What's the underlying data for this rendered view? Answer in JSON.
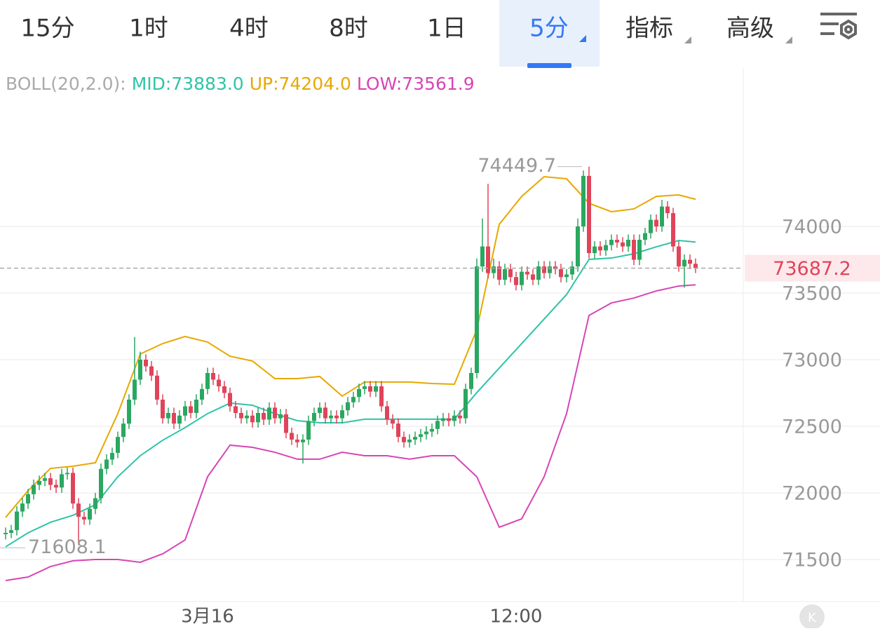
{
  "toolbar": {
    "tabs": [
      "15分",
      "1时",
      "4时",
      "8时",
      "1日",
      "5分",
      "指标",
      "高级"
    ]
  },
  "chart_data": {
    "type": "candlestick",
    "indicator": "BOLL(20,2.0):",
    "up_color": "#2aa760",
    "down_color": "#e0445a",
    "ylim": [
      71184,
      75174
    ],
    "yticks": [
      71500,
      72000,
      72500,
      73000,
      73500,
      74000
    ],
    "grid": true,
    "categories": [
      null,
      null,
      null,
      null,
      null,
      null,
      null,
      null,
      null,
      null,
      null,
      null,
      null,
      null,
      null,
      null,
      null,
      null,
      null,
      null,
      null,
      null,
      null,
      null,
      null,
      null,
      null,
      null,
      null,
      null,
      null,
      null,
      null,
      null,
      null,
      null,
      "3月16",
      null,
      null,
      null,
      null,
      null,
      null,
      null,
      null,
      null,
      null,
      null,
      null,
      null,
      null,
      null,
      null,
      null,
      null,
      null,
      null,
      null,
      null,
      null,
      null,
      null,
      null,
      null,
      null,
      null,
      null,
      null,
      null,
      null,
      null,
      null,
      null,
      null,
      null,
      null,
      null,
      null,
      null,
      null,
      null,
      null,
      null,
      null,
      null,
      null,
      null,
      null,
      null,
      null,
      null,
      "12:00",
      null,
      null,
      null,
      null,
      null,
      null,
      null,
      null,
      null,
      null,
      null,
      null,
      null,
      null,
      null,
      null,
      null,
      null,
      null,
      null,
      null,
      null,
      null,
      null,
      null,
      null,
      null,
      null,
      null,
      null,
      null,
      null
    ],
    "ohlc": {
      "open": [
        71690,
        71700,
        71720,
        71860,
        71920,
        71990,
        72060,
        72090,
        72110,
        72060,
        72040,
        72140,
        72150,
        71920,
        71820,
        71800,
        71880,
        71960,
        72180,
        72250,
        72300,
        72420,
        72520,
        72700,
        72850,
        73000,
        72950,
        72880,
        72700,
        72560,
        72600,
        72520,
        72580,
        72650,
        72600,
        72700,
        72780,
        72900,
        72850,
        72800,
        72750,
        72650,
        72600,
        72560,
        72580,
        72530,
        72600,
        72550,
        72640,
        72560,
        72590,
        72450,
        72400,
        72380,
        72400,
        72540,
        72600,
        72640,
        72560,
        72580,
        72560,
        72620,
        72680,
        72720,
        72780,
        72800,
        72760,
        72800,
        72650,
        72550,
        72520,
        72420,
        72380,
        72400,
        72420,
        72440,
        72460,
        72480,
        72540,
        72560,
        72540,
        72580,
        72560,
        72780,
        72900,
        73700,
        73850,
        73650,
        73700,
        73600,
        73680,
        73620,
        73560,
        73660,
        73640,
        73600,
        73700,
        73650,
        73700,
        73680,
        73620,
        73640,
        73700,
        74000,
        74380,
        73800,
        73850,
        73820,
        73860,
        73900,
        73880,
        73850,
        73900,
        73750,
        73900,
        73950,
        74050,
        74000,
        74150,
        74100,
        73850,
        73700,
        73750,
        73720
      ],
      "high": [
        71740,
        71760,
        71900,
        71960,
        72030,
        72100,
        72130,
        72150,
        72150,
        72100,
        72180,
        72190,
        72190,
        71960,
        71860,
        71920,
        72000,
        72220,
        72290,
        72340,
        72460,
        72560,
        72740,
        73170,
        73060,
        73040,
        72990,
        72920,
        72740,
        72640,
        72640,
        72620,
        72690,
        72690,
        72740,
        72820,
        72940,
        72940,
        72890,
        72840,
        72790,
        72690,
        72640,
        72620,
        72620,
        72640,
        72640,
        72680,
        72680,
        72630,
        72630,
        72490,
        72440,
        72440,
        72580,
        72640,
        72680,
        72680,
        72620,
        72620,
        72660,
        72720,
        72760,
        72820,
        72840,
        72840,
        72840,
        72840,
        72690,
        72590,
        72560,
        72460,
        72440,
        72460,
        72480,
        72500,
        72520,
        72580,
        72600,
        72600,
        72620,
        72620,
        72820,
        72940,
        73760,
        74060,
        74320,
        73760,
        73740,
        73720,
        73720,
        73660,
        73700,
        73700,
        73680,
        73740,
        73740,
        73740,
        73740,
        73720,
        73680,
        73740,
        74060,
        74420,
        74449.7,
        73890,
        73890,
        73900,
        73940,
        73940,
        73920,
        73940,
        73940,
        73940,
        73990,
        74090,
        74090,
        74200,
        74190,
        74140,
        73890,
        73790,
        73790,
        73760
      ],
      "low": [
        71650,
        71660,
        71680,
        71820,
        71880,
        71950,
        72020,
        72050,
        72020,
        72000,
        72000,
        72100,
        71880,
        71608.1,
        71760,
        71760,
        71840,
        71920,
        72140,
        72210,
        72260,
        72380,
        72480,
        72660,
        72810,
        72910,
        72840,
        72660,
        72520,
        72520,
        72480,
        72480,
        72540,
        72560,
        72560,
        72660,
        72740,
        72810,
        72760,
        72710,
        72610,
        72560,
        72520,
        72520,
        72490,
        72490,
        72510,
        72510,
        72520,
        72520,
        72410,
        72360,
        72340,
        72220,
        72360,
        72500,
        72560,
        72520,
        72520,
        72520,
        72520,
        72580,
        72640,
        72680,
        72740,
        72720,
        72720,
        72610,
        72510,
        72480,
        72380,
        72340,
        72340,
        72360,
        72380,
        72400,
        72420,
        72440,
        72500,
        72500,
        72500,
        72520,
        72520,
        72740,
        72860,
        73660,
        73610,
        73610,
        73560,
        73560,
        73580,
        73520,
        73520,
        73600,
        73560,
        73560,
        73610,
        73610,
        73640,
        73580,
        73580,
        73600,
        73660,
        73960,
        73760,
        73760,
        73780,
        73780,
        73820,
        73840,
        73810,
        73810,
        73710,
        73710,
        73860,
        73910,
        73960,
        73960,
        74060,
        73810,
        73660,
        73540,
        73680,
        73650
      ],
      "close": [
        71700,
        71720,
        71860,
        71920,
        71990,
        72060,
        72090,
        72110,
        72060,
        72040,
        72140,
        72150,
        71920,
        71820,
        71800,
        71880,
        71960,
        72180,
        72250,
        72300,
        72420,
        72520,
        72700,
        72850,
        73000,
        72950,
        72880,
        72700,
        72560,
        72600,
        72520,
        72580,
        72650,
        72600,
        72700,
        72780,
        72900,
        72850,
        72800,
        72750,
        72650,
        72600,
        72560,
        72580,
        72530,
        72600,
        72550,
        72640,
        72560,
        72590,
        72450,
        72400,
        72380,
        72400,
        72540,
        72600,
        72640,
        72560,
        72580,
        72560,
        72620,
        72680,
        72720,
        72780,
        72800,
        72760,
        72800,
        72650,
        72550,
        72520,
        72420,
        72380,
        72400,
        72420,
        72440,
        72460,
        72480,
        72540,
        72560,
        72540,
        72580,
        72560,
        72780,
        72900,
        73700,
        73850,
        73650,
        73700,
        73600,
        73680,
        73620,
        73560,
        73660,
        73640,
        73600,
        73700,
        73650,
        73700,
        73680,
        73620,
        73640,
        73700,
        74000,
        74380,
        73800,
        73850,
        73820,
        73860,
        73900,
        73880,
        73850,
        73900,
        73750,
        73900,
        73950,
        74050,
        74000,
        74150,
        74100,
        73850,
        73700,
        73750,
        73720,
        73687.2
      ]
    },
    "series": [
      {
        "name": "MID:73883.0",
        "color": "#2ec4a6",
        "x": [
          0,
          4,
          8,
          12,
          16,
          20,
          24,
          28,
          32,
          36,
          40,
          44,
          48,
          52,
          56,
          60,
          64,
          68,
          72,
          76,
          80,
          84,
          88,
          92,
          96,
          100,
          104,
          108,
          112,
          116,
          120,
          123
        ],
        "values": [
          71595,
          71700,
          71779,
          71832,
          71911,
          72121,
          72279,
          72395,
          72490,
          72595,
          72674,
          72658,
          72595,
          72542,
          72526,
          72526,
          72553,
          72553,
          72553,
          72553,
          72553,
          72753,
          72937,
          73121,
          73305,
          73489,
          73753,
          73763,
          73795,
          73847,
          73895,
          73883
        ]
      },
      {
        "name": "UP:74204.0",
        "color": "#e8a800",
        "x": [
          0,
          4,
          8,
          12,
          16,
          20,
          24,
          28,
          32,
          36,
          40,
          44,
          48,
          52,
          56,
          60,
          64,
          68,
          72,
          76,
          80,
          84,
          88,
          92,
          96,
          100,
          104,
          108,
          112,
          116,
          120,
          123
        ],
        "values": [
          71816,
          72016,
          72184,
          72200,
          72226,
          72595,
          73042,
          73121,
          73174,
          73132,
          73026,
          72990,
          72858,
          72858,
          72874,
          72726,
          72832,
          72832,
          72832,
          72821,
          72816,
          73226,
          74016,
          74226,
          74374,
          74358,
          74174,
          74111,
          74132,
          74226,
          74237,
          74204
        ]
      },
      {
        "name": "LOW:73561.9",
        "color": "#d845b5",
        "x": [
          0,
          4,
          8,
          12,
          16,
          20,
          24,
          28,
          32,
          36,
          40,
          44,
          48,
          52,
          56,
          60,
          64,
          68,
          72,
          76,
          80,
          84,
          88,
          92,
          96,
          100,
          104,
          108,
          112,
          116,
          120,
          123
        ],
        "values": [
          71342,
          71368,
          71447,
          71490,
          71500,
          71500,
          71479,
          71542,
          71647,
          72121,
          72358,
          72342,
          72305,
          72253,
          72253,
          72305,
          72279,
          72279,
          72253,
          72279,
          72279,
          72121,
          71742,
          71805,
          72121,
          72595,
          73332,
          73426,
          73463,
          73516,
          73553,
          73561.9
        ]
      }
    ],
    "last_price": 73687.2,
    "high_mark": 74449.7,
    "low_mark": 71608.1
  }
}
